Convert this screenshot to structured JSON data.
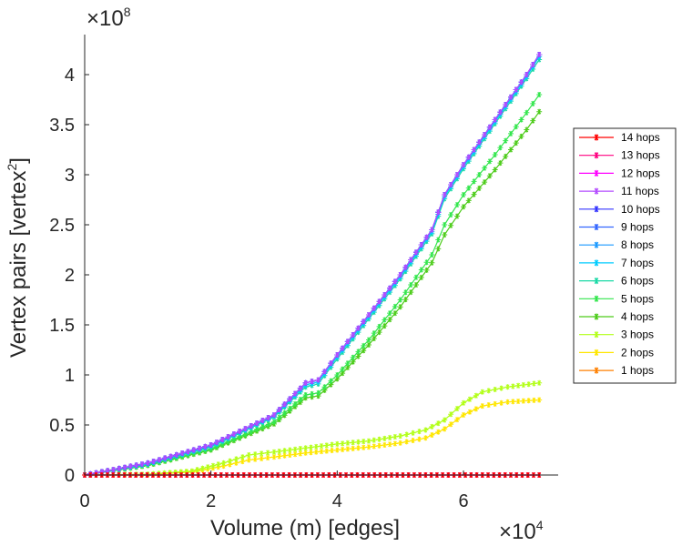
{
  "chart_data": {
    "type": "line",
    "xlabel": "Volume (m) [edges]",
    "ylabel": "Vertex pairs [vertex",
    "ylabel_superscript": "2",
    "ylabel_close": "]",
    "x_multiplier": "×10",
    "x_multiplier_exp": "4",
    "y_multiplier": "×10",
    "y_multiplier_exp": "8",
    "xlim": [
      0,
      75000
    ],
    "ylim": [
      0,
      440000000
    ],
    "xticks": [
      0,
      20000,
      40000,
      60000
    ],
    "xtick_labels": [
      "0",
      "2",
      "4",
      "6"
    ],
    "yticks": [
      0,
      50000000,
      100000000,
      150000000,
      200000000,
      250000000,
      300000000,
      350000000,
      400000000
    ],
    "ytick_labels": [
      "0",
      "0.5",
      "1",
      "1.5",
      "2",
      "2.5",
      "3",
      "3.5",
      "4"
    ],
    "marker": "*",
    "legend_position": "right",
    "series": [
      {
        "name": "14 hops",
        "color": "#ff0000",
        "x": [
          0,
          72000
        ],
        "y": [
          0,
          0
        ]
      },
      {
        "name": "13 hops",
        "color": "#ff0080",
        "x": [
          0,
          72000
        ],
        "y": [
          0,
          0
        ]
      },
      {
        "name": "12 hops",
        "color": "#ff00ff",
        "x": [
          0,
          72000
        ],
        "y": [
          0,
          0
        ]
      },
      {
        "name": "11 hops",
        "color": "#b44cff",
        "x": [
          0,
          10000,
          20000,
          30000,
          35000,
          37000,
          40000,
          45000,
          50000,
          55000,
          57000,
          60000,
          65000,
          70000,
          72000
        ],
        "y": [
          0,
          12000000,
          30000000,
          60000000,
          92000000,
          95000000,
          120000000,
          160000000,
          200000000,
          245000000,
          280000000,
          310000000,
          355000000,
          400000000,
          420000000
        ]
      },
      {
        "name": "10 hops",
        "color": "#3333ff",
        "x": [
          0,
          10000,
          20000,
          30000,
          35000,
          37000,
          40000,
          45000,
          50000,
          55000,
          57000,
          60000,
          65000,
          70000,
          72000
        ],
        "y": [
          0,
          12000000,
          30000000,
          60000000,
          92000000,
          95000000,
          120000000,
          160000000,
          200000000,
          245000000,
          280000000,
          310000000,
          355000000,
          400000000,
          420000000
        ]
      },
      {
        "name": "9 hops",
        "color": "#3366ff",
        "x": [
          0,
          10000,
          20000,
          30000,
          35000,
          37000,
          40000,
          45000,
          50000,
          55000,
          57000,
          60000,
          65000,
          70000,
          72000
        ],
        "y": [
          0,
          12000000,
          30000000,
          60000000,
          92000000,
          95000000,
          120000000,
          160000000,
          200000000,
          245000000,
          280000000,
          310000000,
          355000000,
          400000000,
          420000000
        ]
      },
      {
        "name": "8 hops",
        "color": "#1a99ff",
        "x": [
          0,
          10000,
          20000,
          30000,
          35000,
          37000,
          40000,
          45000,
          50000,
          55000,
          57000,
          60000,
          65000,
          70000,
          72000
        ],
        "y": [
          0,
          12000000,
          30000000,
          60000000,
          92000000,
          95000000,
          120000000,
          160000000,
          200000000,
          245000000,
          280000000,
          310000000,
          355000000,
          400000000,
          420000000
        ]
      },
      {
        "name": "7 hops",
        "color": "#00ccff",
        "x": [
          0,
          10000,
          20000,
          30000,
          35000,
          37000,
          40000,
          45000,
          50000,
          55000,
          57000,
          60000,
          65000,
          70000,
          72000
        ],
        "y": [
          0,
          11000000,
          29000000,
          59000000,
          90000000,
          93000000,
          118000000,
          158000000,
          198000000,
          243000000,
          278000000,
          308000000,
          353000000,
          398000000,
          418000000
        ]
      },
      {
        "name": "6 hops",
        "color": "#1ad9a6",
        "x": [
          0,
          10000,
          20000,
          30000,
          35000,
          37000,
          40000,
          45000,
          50000,
          55000,
          57000,
          60000,
          65000,
          70000,
          72000
        ],
        "y": [
          0,
          11000000,
          28000000,
          58000000,
          88000000,
          91000000,
          116000000,
          156000000,
          196000000,
          241000000,
          276000000,
          306000000,
          351000000,
          396000000,
          415000000
        ]
      },
      {
        "name": "5 hops",
        "color": "#33e64d",
        "x": [
          0,
          10000,
          20000,
          30000,
          35000,
          37000,
          40000,
          45000,
          50000,
          55000,
          57000,
          60000,
          65000,
          70000,
          72000
        ],
        "y": [
          0,
          10000000,
          26000000,
          53000000,
          80000000,
          82000000,
          100000000,
          135000000,
          175000000,
          220000000,
          250000000,
          280000000,
          320000000,
          362000000,
          380000000
        ]
      },
      {
        "name": "4 hops",
        "color": "#4dcc1a",
        "x": [
          0,
          10000,
          20000,
          30000,
          35000,
          37000,
          40000,
          45000,
          50000,
          55000,
          57000,
          60000,
          65000,
          70000,
          72000
        ],
        "y": [
          0,
          9500000,
          25000000,
          51000000,
          77000000,
          79000000,
          96000000,
          130000000,
          168000000,
          212000000,
          240000000,
          268000000,
          305000000,
          345000000,
          363000000
        ]
      },
      {
        "name": "3 hops",
        "color": "#b3ff1a",
        "x": [
          0,
          10000,
          17000,
          22000,
          26000,
          30000,
          35000,
          40000,
          45000,
          50000,
          54000,
          57000,
          60000,
          63000,
          67000,
          72000
        ],
        "y": [
          0,
          800000,
          4000000,
          12000000,
          20000000,
          23000000,
          27000000,
          31000000,
          34000000,
          39000000,
          45000000,
          55000000,
          72000000,
          83000000,
          88000000,
          92000000
        ]
      },
      {
        "name": "2 hops",
        "color": "#ffe600",
        "x": [
          0,
          10000,
          17000,
          22000,
          26000,
          30000,
          35000,
          40000,
          45000,
          50000,
          54000,
          57000,
          60000,
          63000,
          67000,
          72000
        ],
        "y": [
          0,
          500000,
          3000000,
          9000000,
          15000000,
          18000000,
          22000000,
          25000000,
          28000000,
          32000000,
          37000000,
          46000000,
          60000000,
          69000000,
          73000000,
          75000000
        ]
      },
      {
        "name": "1 hops",
        "color": "#ff8000",
        "x": [
          0,
          72000
        ],
        "y": [
          0,
          0
        ]
      }
    ]
  }
}
